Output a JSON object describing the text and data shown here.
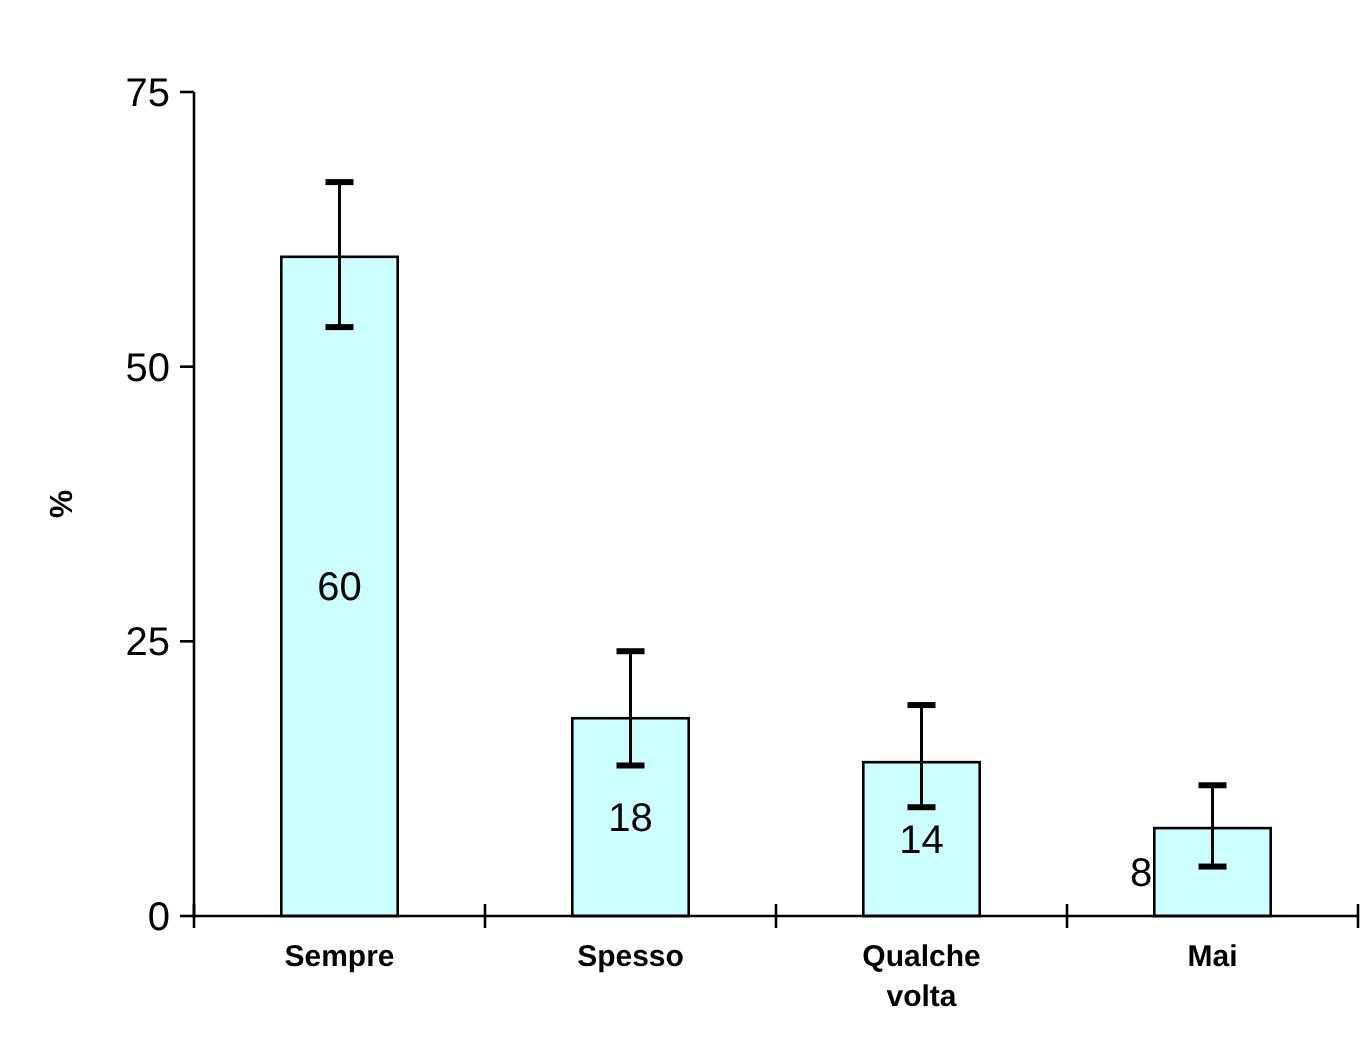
{
  "chart_data": {
    "type": "bar",
    "ylabel": "%",
    "categories": [
      "Sempre",
      "Spesso",
      "Qualche volta",
      "Mai"
    ],
    "values": [
      60,
      18,
      14,
      8
    ],
    "errors": [
      [
        53.6,
        66.8
      ],
      [
        13.7,
        24.1
      ],
      [
        9.9,
        19.2
      ],
      [
        4.5,
        11.9
      ]
    ],
    "color": "#ccffff",
    "ylim": [
      0,
      75
    ],
    "yticks": [
      0,
      25,
      50,
      75
    ],
    "data_labels": true,
    "grid": false
  }
}
